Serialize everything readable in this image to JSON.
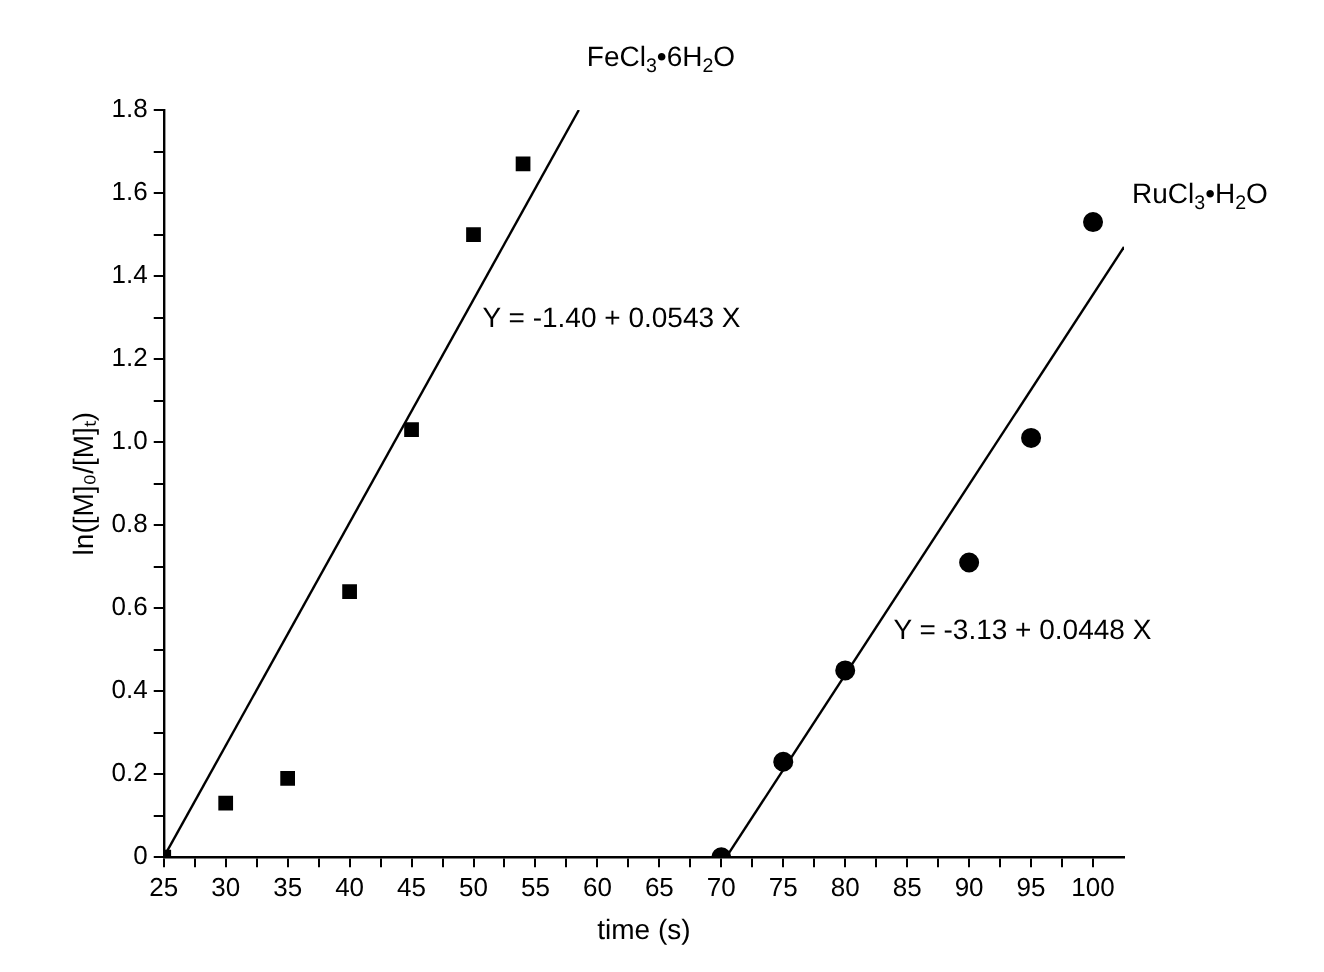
{
  "chart_data": {
    "type": "scatter",
    "xlabel": "time (s)",
    "ylabel": "ln([M]₀/[M]ₜ)",
    "xlim": [
      25,
      102.5
    ],
    "xticks": [
      25,
      {
        "value": 27.5,
        "label": null
      },
      30,
      {
        "value": 32.5,
        "label": null
      },
      35,
      {
        "value": 37.5,
        "label": null
      },
      40,
      {
        "value": 42.5,
        "label": null
      },
      45,
      {
        "value": 47.5,
        "label": null
      },
      50,
      {
        "value": 52.5,
        "label": null
      },
      55,
      {
        "value": 57.5,
        "label": null
      },
      60,
      {
        "value": 62.5,
        "label": null
      },
      65,
      {
        "value": 67.5,
        "label": null
      },
      70,
      {
        "value": 72.5,
        "label": null
      },
      75,
      {
        "value": 77.5,
        "label": null
      },
      80,
      {
        "value": 82.5,
        "label": null
      },
      85,
      {
        "value": 87.5,
        "label": null
      },
      90,
      {
        "value": 92.5,
        "label": null
      },
      95,
      {
        "value": 97.5,
        "label": null
      },
      100
    ],
    "ylim": [
      0,
      1.8
    ],
    "yticks": [
      0,
      {
        "value": 0.1,
        "label": null
      },
      0.2,
      {
        "value": 0.3,
        "label": null
      },
      0.4,
      {
        "value": 0.5,
        "label": null
      },
      0.6,
      {
        "value": 0.7,
        "label": null
      },
      0.8,
      {
        "value": 0.9,
        "label": null
      },
      {
        "value": 1,
        "label": "1.0"
      },
      {
        "value": 1.1,
        "label": null
      },
      1.2,
      {
        "value": 1.3,
        "label": null
      },
      1.4,
      {
        "value": 1.5,
        "label": null
      },
      1.6,
      {
        "value": 1.7,
        "label": null
      },
      1.8
    ],
    "grid": false,
    "legend": false,
    "series": [
      {
        "name": "FeCl$_{3}$•6H$_{2}$O",
        "marker": "square",
        "color": "#000000",
        "x": [
          25,
          30,
          35,
          40,
          45,
          50,
          54
        ],
        "values": [
          0,
          0.13,
          0.19,
          0.64,
          1.03,
          1.5,
          1.67
        ]
      },
      {
        "name": "RuCl$_{3}$•H$_{2}$O",
        "marker": "circle",
        "color": "#000000",
        "x": [
          70,
          75,
          80,
          90,
          95,
          100
        ],
        "values": [
          0,
          0.23,
          0.45,
          0.71,
          1.01,
          1.53
        ]
      },
      {
        "type": "line",
        "marker": "none",
        "line_style": "solid",
        "color": "#000000",
        "x": [
          25,
          58.5
        ],
        "values": [
          0,
          1.8
        ]
      },
      {
        "type": "line",
        "marker": "none",
        "line_style": "solid",
        "color": "#000000",
        "x": [
          70.4,
          102.5
        ],
        "values": [
          0,
          1.47
        ]
      }
    ],
    "annotations": [
      "Y = -1.40 + 0.0543 X",
      "Y = -3.13 + 0.0448 X"
    ]
  }
}
